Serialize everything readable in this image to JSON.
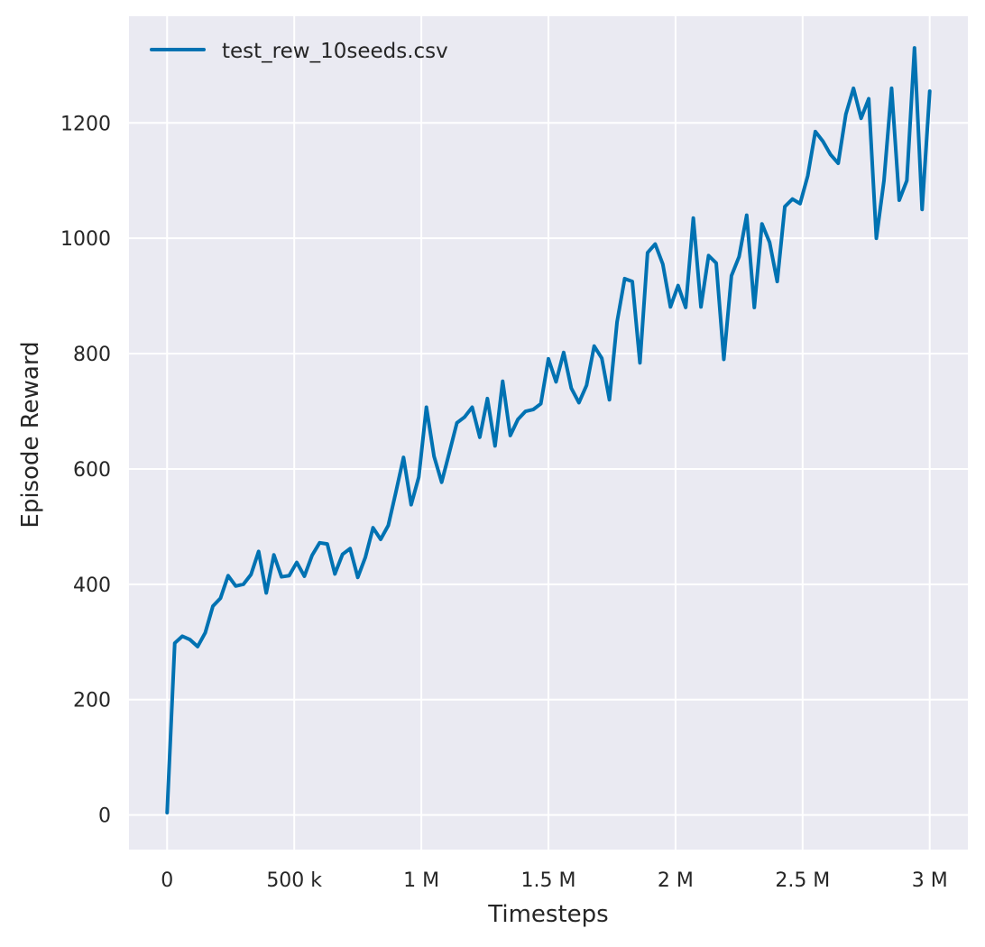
{
  "chart_data": {
    "type": "line",
    "xlabel": "Timesteps",
    "ylabel": "Episode Reward",
    "xlim": [
      -150000,
      3150000
    ],
    "ylim": [
      -60,
      1385
    ],
    "x_ticks": [
      0,
      500000,
      1000000,
      1500000,
      2000000,
      2500000,
      3000000
    ],
    "x_tick_labels": [
      "0",
      "500 k",
      "1 M",
      "1.5 M",
      "2 M",
      "2.5 M",
      "3 M"
    ],
    "y_ticks": [
      0,
      200,
      400,
      600,
      800,
      1000,
      1200
    ],
    "y_tick_labels": [
      "0",
      "200",
      "400",
      "600",
      "800",
      "1000",
      "1200"
    ],
    "grid": true,
    "background": "#eaeaf2",
    "legend_position": "top-left",
    "series": [
      {
        "name": "test_rew_10seeds.csv",
        "color": "#0072b2",
        "x": [
          0,
          30000,
          60000,
          90000,
          120000,
          150000,
          180000,
          210000,
          240000,
          270000,
          300000,
          330000,
          360000,
          390000,
          420000,
          450000,
          480000,
          510000,
          540000,
          570000,
          600000,
          630000,
          660000,
          690000,
          720000,
          750000,
          780000,
          810000,
          840000,
          870000,
          900000,
          930000,
          960000,
          990000,
          1020000,
          1050000,
          1080000,
          1110000,
          1140000,
          1170000,
          1200000,
          1230000,
          1260000,
          1290000,
          1320000,
          1350000,
          1380000,
          1410000,
          1440000,
          1470000,
          1500000,
          1530000,
          1560000,
          1590000,
          1620000,
          1650000,
          1680000,
          1710000,
          1740000,
          1770000,
          1800000,
          1830000,
          1860000,
          1890000,
          1920000,
          1950000,
          1980000,
          2010000,
          2040000,
          2070000,
          2100000,
          2130000,
          2160000,
          2190000,
          2220000,
          2250000,
          2280000,
          2310000,
          2340000,
          2370000,
          2400000,
          2430000,
          2460000,
          2490000,
          2520000,
          2550000,
          2580000,
          2610000,
          2640000,
          2670000,
          2700000,
          2730000,
          2760000,
          2790000,
          2820000,
          2850000,
          2880000,
          2910000,
          2940000,
          2970000,
          3000000
        ],
        "y": [
          4,
          298,
          310,
          304,
          292,
          316,
          362,
          376,
          415,
          397,
          400,
          417,
          457,
          385,
          451,
          413,
          415,
          438,
          414,
          450,
          472,
          470,
          418,
          452,
          462,
          412,
          447,
          498,
          478,
          502,
          560,
          620,
          538,
          586,
          707,
          622,
          577,
          628,
          680,
          690,
          707,
          655,
          722,
          640,
          752,
          658,
          686,
          700,
          703,
          713,
          791,
          751,
          802,
          740,
          715,
          745,
          813,
          792,
          720,
          855,
          930,
          925,
          784,
          975,
          990,
          955,
          881,
          918,
          880,
          1035,
          881,
          970,
          957,
          790,
          935,
          968,
          1040,
          880,
          1025,
          993,
          925,
          1055,
          1068,
          1060,
          1108,
          1185,
          1168,
          1145,
          1130,
          1215,
          1260,
          1208,
          1242,
          1000,
          1100,
          1260,
          1066,
          1100,
          1330,
          1050,
          1255
        ]
      }
    ]
  }
}
